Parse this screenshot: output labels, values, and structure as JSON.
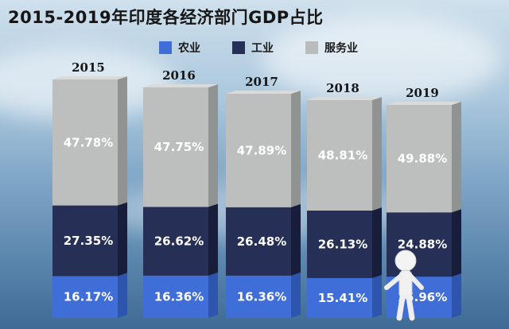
{
  "chart_data": {
    "type": "bar",
    "stacked": true,
    "title": "2015-2019年印度各经济部门GDP占比",
    "categories": [
      "2015",
      "2016",
      "2017",
      "2018",
      "2019"
    ],
    "series": [
      {
        "name": "农业",
        "color": "#3f6ed8",
        "values": [
          16.17,
          16.36,
          16.36,
          15.41,
          15.96
        ],
        "labels": [
          "16.17%",
          "16.36%",
          "16.36%",
          "15.41%",
          "15.96%"
        ]
      },
      {
        "name": "工业",
        "color": "#262f55",
        "values": [
          27.35,
          26.62,
          26.48,
          26.13,
          24.88
        ],
        "labels": [
          "27.35%",
          "26.62%",
          "26.48%",
          "26.13%",
          "24.88%"
        ]
      },
      {
        "name": "服务业",
        "color": "#b9bcba",
        "values": [
          47.78,
          47.75,
          47.89,
          48.81,
          49.88
        ],
        "labels": [
          "47.78%",
          "47.75%",
          "47.89%",
          "48.81%",
          "49.88%"
        ]
      }
    ],
    "legend_position": "top",
    "grid": false
  }
}
